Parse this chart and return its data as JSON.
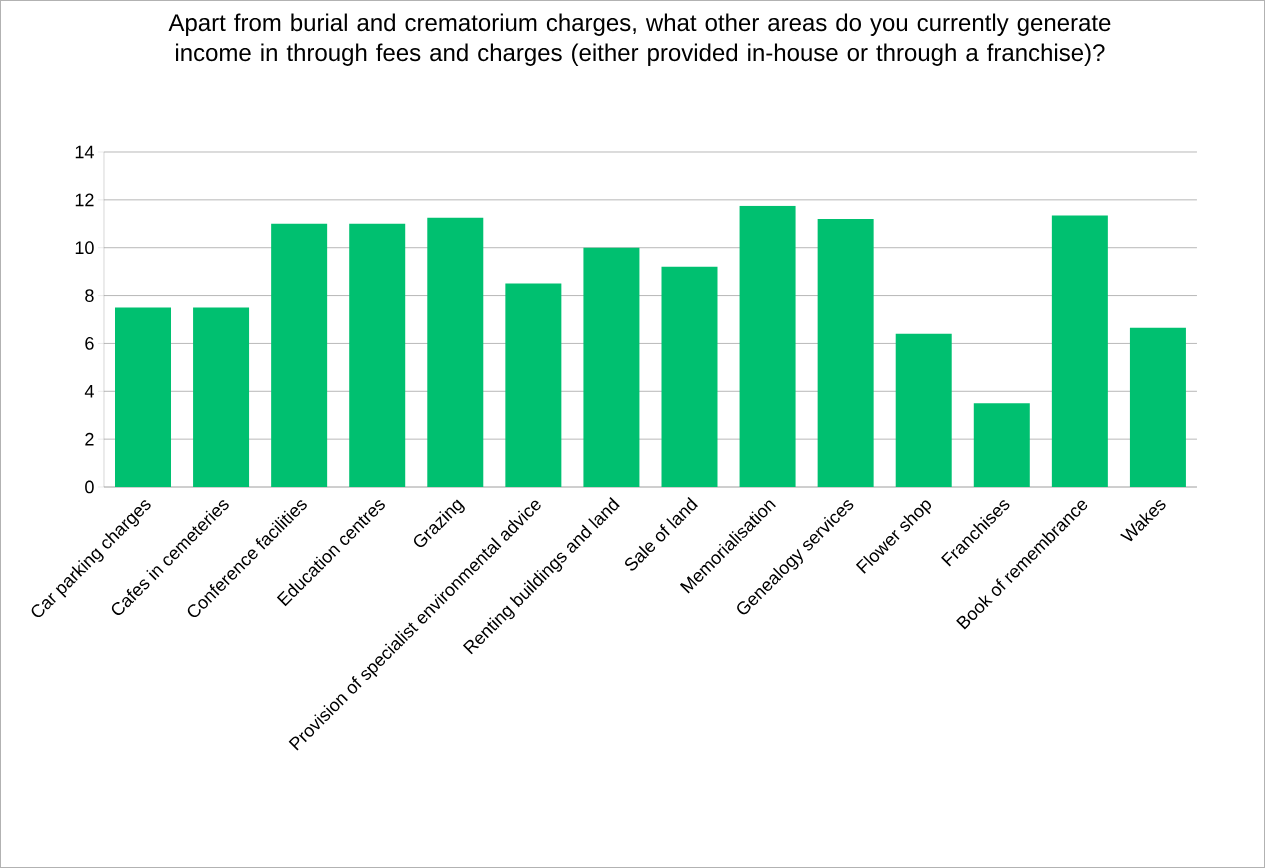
{
  "chart_data": {
    "type": "bar",
    "title": "Apart from burial and crematorium charges, what other areas do you currently generate income in through fees and charges (either provided in-house or through a franchise)?",
    "categories": [
      "Car parking charges",
      "Cafes in cemeteries",
      "Conference facilities",
      "Education centres",
      "Grazing",
      "Provision of specialist environmental advice",
      "Renting buildings and land",
      "Sale of land",
      "Memorialisation",
      "Genealogy services",
      "Flower shop",
      "Franchises",
      "Book of remembrance",
      "Wakes"
    ],
    "values": [
      7.5,
      7.5,
      11,
      11,
      11.25,
      8.5,
      10,
      9.2,
      11.75,
      11.2,
      6.4,
      3.5,
      11.35,
      6.65
    ],
    "color": "#00c070",
    "ylim": [
      0,
      14
    ],
    "yticks": [
      0,
      2,
      4,
      6,
      8,
      10,
      12,
      14
    ],
    "grid": "y"
  }
}
